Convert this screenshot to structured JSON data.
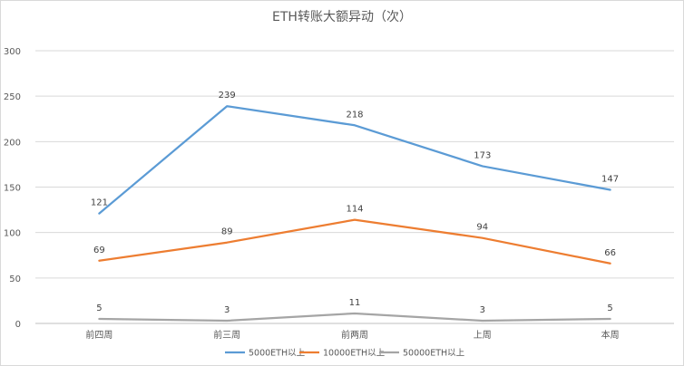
{
  "chart_data": {
    "type": "line",
    "title": "ETH转账大额异动（次）",
    "categories": [
      "前四周",
      "前三周",
      "前两周",
      "上周",
      "本周"
    ],
    "ylim": [
      0,
      300
    ],
    "yticks": [
      0,
      50,
      100,
      150,
      200,
      250,
      300
    ],
    "grid": true,
    "legend_position": "bottom",
    "series": [
      {
        "name": "5000ETH以上",
        "color": "#5b9bd5",
        "values": [
          121,
          239,
          218,
          173,
          147
        ]
      },
      {
        "name": "10000ETH以上",
        "color": "#ed7d31",
        "values": [
          69,
          89,
          114,
          94,
          66
        ]
      },
      {
        "name": "50000ETH以上",
        "color": "#a5a5a5",
        "values": [
          5,
          3,
          11,
          3,
          5
        ]
      }
    ]
  }
}
